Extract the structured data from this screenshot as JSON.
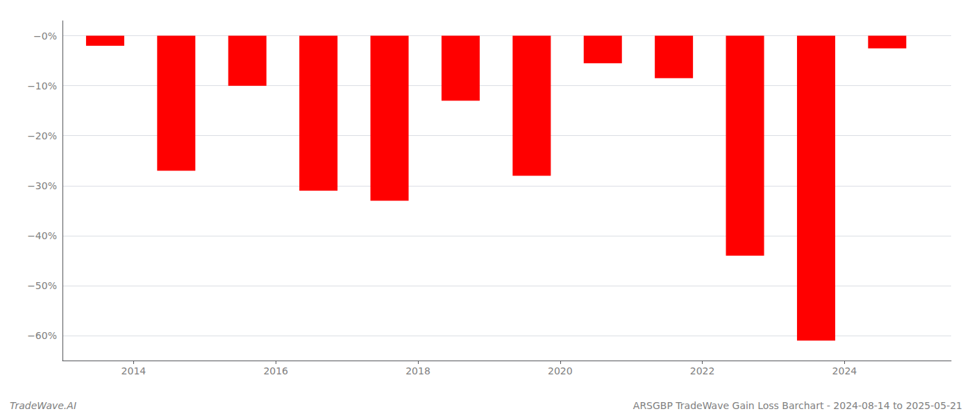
{
  "chart_data": {
    "type": "bar",
    "x": [
      2013.6,
      2014.6,
      2015.6,
      2016.6,
      2017.6,
      2018.6,
      2019.6,
      2020.6,
      2021.6,
      2022.6,
      2023.6,
      2024.6
    ],
    "values": [
      -2.0,
      -27.0,
      -10.0,
      -31.0,
      -33.0,
      -13.0,
      -28.0,
      -5.5,
      -8.5,
      -44.0,
      -61.0,
      -2.5
    ],
    "color": "#ff0000",
    "xlim": [
      2013.0,
      2025.5
    ],
    "xticks": [
      2014,
      2016,
      2018,
      2020,
      2022,
      2024
    ],
    "ylim": [
      -65,
      3
    ],
    "yticks": [
      {
        "value": 0,
        "label": "−0%"
      },
      {
        "value": -10,
        "label": "−10%"
      },
      {
        "value": -20,
        "label": "−20%"
      },
      {
        "value": -30,
        "label": "−30%"
      },
      {
        "value": -40,
        "label": "−40%"
      },
      {
        "value": -50,
        "label": "−50%"
      },
      {
        "value": -60,
        "label": "−60%"
      }
    ],
    "grid": true,
    "annotations": [
      "TradeWave.AI",
      "ARSGBP TradeWave Gain Loss Barchart - 2024-08-14 to 2025-05-21"
    ]
  }
}
